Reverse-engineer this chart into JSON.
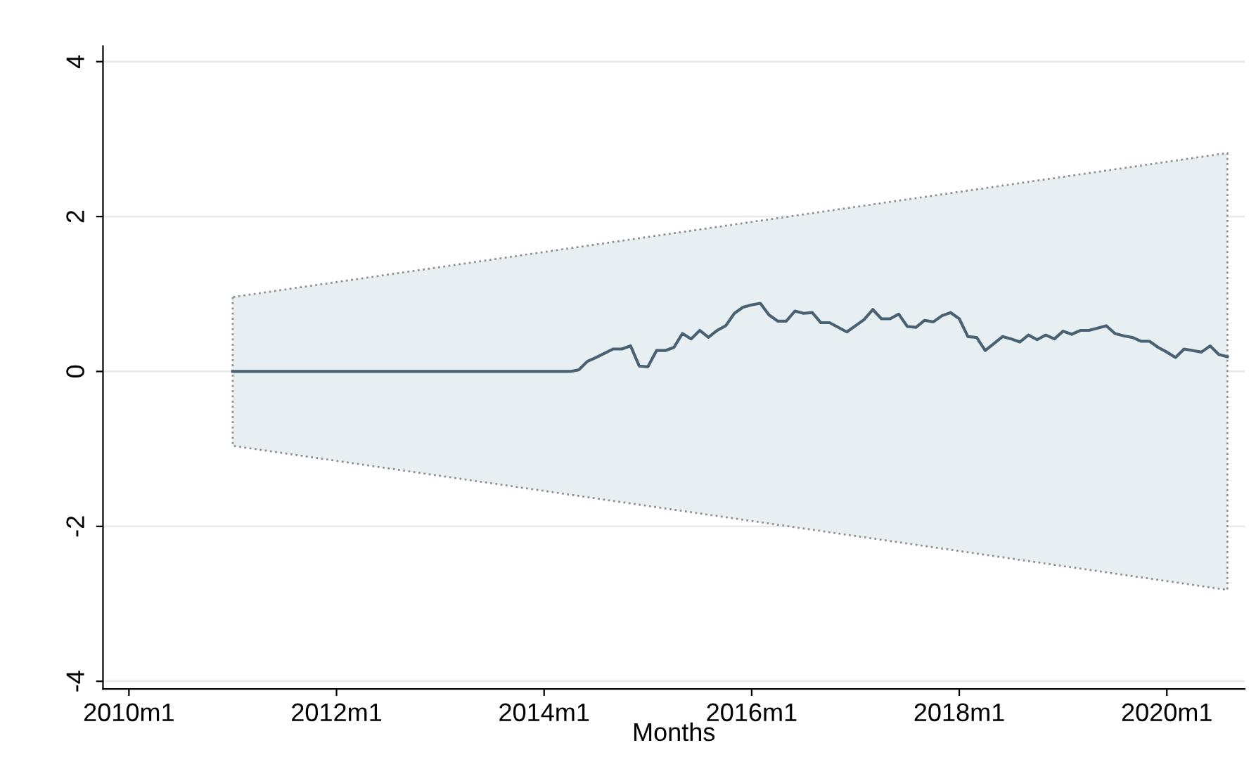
{
  "chart_data": {
    "type": "line",
    "xlabel": "Months",
    "xlim": [
      "2009-10",
      "2020-10"
    ],
    "ylim": [
      -4.1,
      4.2
    ],
    "xticks": [
      {
        "value": "2010-01",
        "label": "2010m1"
      },
      {
        "value": "2012-01",
        "label": "2012m1"
      },
      {
        "value": "2014-01",
        "label": "2014m1"
      },
      {
        "value": "2016-01",
        "label": "2016m1"
      },
      {
        "value": "2018-01",
        "label": "2018m1"
      },
      {
        "value": "2020-01",
        "label": "2020m1"
      }
    ],
    "yticks": [
      -4,
      -2,
      0,
      2,
      4
    ],
    "grid": "y",
    "legend": false,
    "marker": "none",
    "line_style": "solid",
    "series": [
      {
        "type": "area",
        "color": "#e8eff3",
        "x": [
          "2011-01",
          "2020-08"
        ],
        "values": [
          null,
          null
        ],
        "lower": [
          -0.96,
          -2.82
        ],
        "upper": [
          0.96,
          2.82
        ]
      },
      {
        "color": "#4a6073",
        "x": [
          "2011-01",
          "2014-04",
          "2014-05",
          "2014-06",
          "2014-07",
          "2014-09",
          "2014-10",
          "2014-11",
          "2014-12",
          "2015-01",
          "2015-02",
          "2015-03",
          "2015-04",
          "2015-05",
          "2015-06",
          "2015-07",
          "2015-08",
          "2015-09",
          "2015-10",
          "2015-11",
          "2015-12",
          "2016-01",
          "2016-02",
          "2016-03",
          "2016-04",
          "2016-05",
          "2016-06",
          "2016-07",
          "2016-08",
          "2016-09",
          "2016-10",
          "2016-12",
          "2017-02",
          "2017-03",
          "2017-04",
          "2017-05",
          "2017-06",
          "2017-07",
          "2017-08",
          "2017-09",
          "2017-10",
          "2017-11",
          "2017-12",
          "2018-01",
          "2018-02",
          "2018-03",
          "2018-04",
          "2018-05",
          "2018-06",
          "2018-07",
          "2018-08",
          "2018-09",
          "2018-10",
          "2018-11",
          "2018-12",
          "2019-01",
          "2019-02",
          "2019-03",
          "2019-04",
          "2019-05",
          "2019-06",
          "2019-07",
          "2019-08",
          "2019-09",
          "2019-10",
          "2019-11",
          "2019-12",
          "2020-01",
          "2020-02",
          "2020-03",
          "2020-04",
          "2020-05",
          "2020-06",
          "2020-07",
          "2020-08"
        ],
        "values": [
          0,
          0,
          0.02,
          0.13,
          0.18,
          0.29,
          0.29,
          0.33,
          0.07,
          0.06,
          0.27,
          0.27,
          0.31,
          0.49,
          0.42,
          0.53,
          0.44,
          0.53,
          0.59,
          0.75,
          0.83,
          0.86,
          0.88,
          0.73,
          0.65,
          0.65,
          0.78,
          0.75,
          0.76,
          0.63,
          0.63,
          0.51,
          0.67,
          0.8,
          0.68,
          0.68,
          0.74,
          0.58,
          0.57,
          0.66,
          0.64,
          0.72,
          0.76,
          0.68,
          0.45,
          0.44,
          0.27,
          0.36,
          0.45,
          0.42,
          0.38,
          0.47,
          0.41,
          0.47,
          0.42,
          0.52,
          0.48,
          0.53,
          0.53,
          0.56,
          0.59,
          0.49,
          0.46,
          0.44,
          0.39,
          0.39,
          0.31,
          0.25,
          0.18,
          0.29,
          0.27,
          0.25,
          0.33,
          0.22,
          0.19
        ]
      }
    ]
  }
}
